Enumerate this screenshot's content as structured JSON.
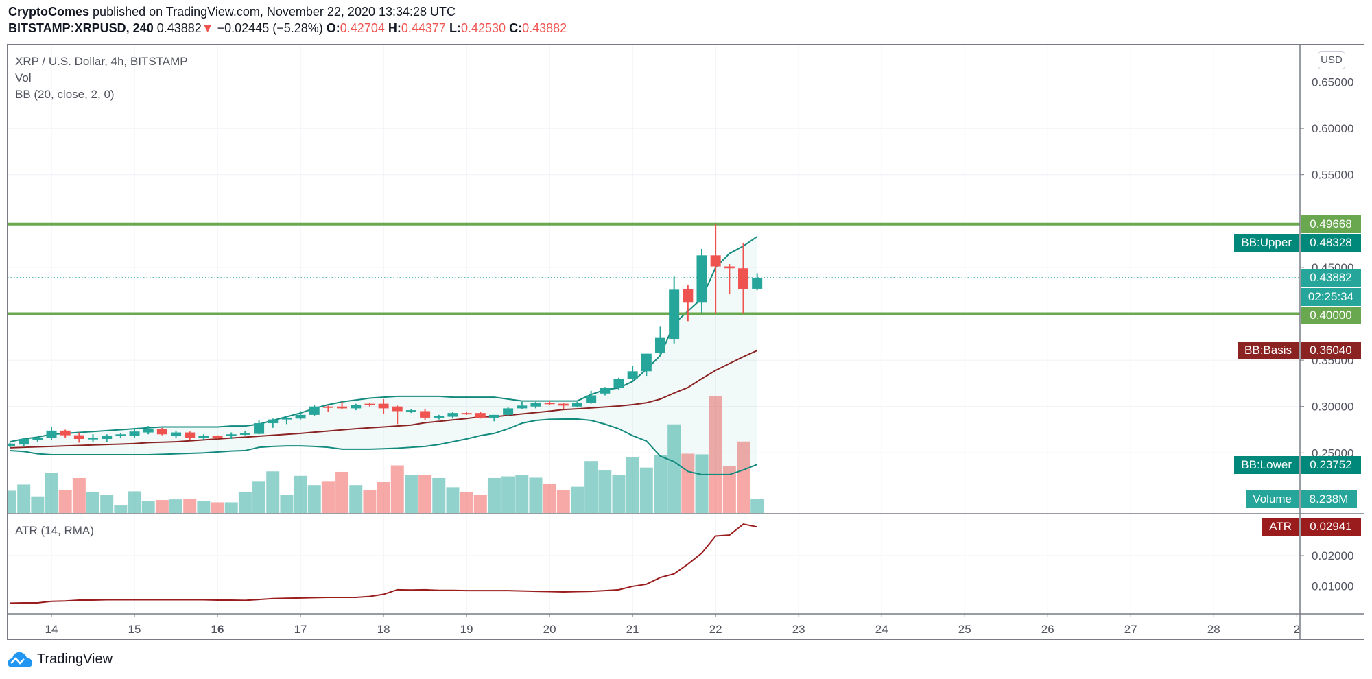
{
  "header": {
    "author": "CryptoComes",
    "published": "published on TradingView.com, November 22, 2020 13:34:28 UTC",
    "symbol": "BITSTAMP:XRPUSD, 240",
    "last": "0.43882",
    "change_arrow": "▼",
    "change": "−0.02445 (−5.28%)",
    "o_label": "O:",
    "o": "0.42704",
    "h_label": "H:",
    "h": "0.44377",
    "l_label": "L:",
    "l": "0.42530",
    "c_label": "C:",
    "c": "0.43882"
  },
  "legend": {
    "title": "XRP / U.S. Dollar, 4h, BITSTAMP",
    "vol": "Vol",
    "bb": "BB (20, close, 2, 0)",
    "atr": "ATR (14, RMA)"
  },
  "currency_button": "USD",
  "price_labels": {
    "resistance": "0.49668",
    "bb_upper_name": "BB:Upper",
    "bb_upper": "0.48328",
    "last": "0.43882",
    "countdown": "02:25:34",
    "support": "0.40000",
    "bb_basis_name": "BB:Basis",
    "bb_basis": "0.36040",
    "bb_lower_name": "BB:Lower",
    "bb_lower": "0.23752",
    "volume_name": "Volume",
    "volume": "8.238M",
    "atr_name": "ATR",
    "atr": "0.02941"
  },
  "colors": {
    "up": "#26a69a",
    "down": "#ef5350",
    "bb_band": "#138a7e",
    "bb_basis": "#8b2323",
    "hline": "#6aa84f",
    "atr": "#9b1c1c"
  },
  "footer": {
    "brand": "TradingView",
    "icon": "tradingview-cloud-logo"
  },
  "chart_data": {
    "type": "candlestick",
    "interval": "4h",
    "x_tick_labels": [
      "14",
      "15",
      "16",
      "17",
      "18",
      "19",
      "20",
      "21",
      "22",
      "23",
      "24",
      "25",
      "26",
      "27",
      "28",
      "2"
    ],
    "price_ticks": [
      "0.25000",
      "0.30000",
      "0.35000",
      "0.45000",
      "0.55000",
      "0.60000",
      "0.65000"
    ],
    "atr_ticks": [
      "0.01000",
      "0.02000"
    ],
    "price_range": [
      0.21,
      0.66
    ],
    "horizontal_lines": [
      0.49668,
      0.4
    ],
    "last_price": 0.43882,
    "ohlc": [
      [
        0.257,
        0.261,
        0.256,
        0.26
      ],
      [
        0.259,
        0.266,
        0.257,
        0.265
      ],
      [
        0.264,
        0.267,
        0.262,
        0.266
      ],
      [
        0.266,
        0.278,
        0.264,
        0.274
      ],
      [
        0.274,
        0.275,
        0.266,
        0.269
      ],
      [
        0.269,
        0.272,
        0.261,
        0.265
      ],
      [
        0.265,
        0.27,
        0.262,
        0.266
      ],
      [
        0.265,
        0.27,
        0.262,
        0.268
      ],
      [
        0.268,
        0.271,
        0.266,
        0.27
      ],
      [
        0.268,
        0.277,
        0.266,
        0.273
      ],
      [
        0.272,
        0.279,
        0.27,
        0.276
      ],
      [
        0.276,
        0.277,
        0.269,
        0.27
      ],
      [
        0.268,
        0.274,
        0.266,
        0.272
      ],
      [
        0.272,
        0.273,
        0.264,
        0.266
      ],
      [
        0.266,
        0.27,
        0.264,
        0.268
      ],
      [
        0.268,
        0.269,
        0.265,
        0.267
      ],
      [
        0.268,
        0.272,
        0.265,
        0.27
      ],
      [
        0.2705,
        0.274,
        0.269,
        0.271
      ],
      [
        0.2705,
        0.285,
        0.27,
        0.282
      ],
      [
        0.282,
        0.287,
        0.277,
        0.286
      ],
      [
        0.286,
        0.29,
        0.281,
        0.288
      ],
      [
        0.287,
        0.295,
        0.286,
        0.291
      ],
      [
        0.291,
        0.302,
        0.29,
        0.3
      ],
      [
        0.3,
        0.301,
        0.294,
        0.299
      ],
      [
        0.3,
        0.305,
        0.297,
        0.298
      ],
      [
        0.298,
        0.303,
        0.296,
        0.302
      ],
      [
        0.303,
        0.304,
        0.3,
        0.302
      ],
      [
        0.303,
        0.308,
        0.292,
        0.298
      ],
      [
        0.3,
        0.301,
        0.281,
        0.295
      ],
      [
        0.295,
        0.297,
        0.293,
        0.296
      ],
      [
        0.295,
        0.297,
        0.285,
        0.288
      ],
      [
        0.288,
        0.291,
        0.286,
        0.29
      ],
      [
        0.289,
        0.294,
        0.287,
        0.293
      ],
      [
        0.293,
        0.294,
        0.291,
        0.292
      ],
      [
        0.293,
        0.294,
        0.287,
        0.288
      ],
      [
        0.288,
        0.291,
        0.284,
        0.291
      ],
      [
        0.291,
        0.299,
        0.29,
        0.298
      ],
      [
        0.298,
        0.305,
        0.297,
        0.301
      ],
      [
        0.3,
        0.305,
        0.298,
        0.304
      ],
      [
        0.304,
        0.306,
        0.302,
        0.303
      ],
      [
        0.303,
        0.304,
        0.297,
        0.301
      ],
      [
        0.3,
        0.305,
        0.299,
        0.304
      ],
      [
        0.304,
        0.317,
        0.303,
        0.312
      ],
      [
        0.314,
        0.321,
        0.312,
        0.32
      ],
      [
        0.32,
        0.331,
        0.318,
        0.33
      ],
      [
        0.33,
        0.344,
        0.328,
        0.338
      ],
      [
        0.338,
        0.357,
        0.333,
        0.357
      ],
      [
        0.358,
        0.386,
        0.355,
        0.374
      ],
      [
        0.373,
        0.44,
        0.368,
        0.426
      ],
      [
        0.427,
        0.431,
        0.392,
        0.412
      ],
      [
        0.412,
        0.47,
        0.401,
        0.463
      ],
      [
        0.463,
        0.4966,
        0.4,
        0.451
      ],
      [
        0.451,
        0.4536,
        0.421,
        0.449
      ],
      [
        0.449,
        0.4766,
        0.4,
        0.427
      ],
      [
        0.42704,
        0.44377,
        0.4253,
        0.43882
      ]
    ],
    "volume_millions": [
      13.4,
      17.1,
      10,
      24,
      13.7,
      21,
      12.7,
      10.7,
      4.5,
      13,
      7.3,
      7.8,
      8.2,
      8.6,
      7,
      6.4,
      6.4,
      12.5,
      18.8,
      25,
      10.7,
      22.3,
      16.8,
      18.8,
      24.7,
      16.8,
      13.7,
      18.5,
      28.6,
      22.7,
      22.7,
      21,
      15.5,
      12.5,
      10.7,
      21,
      22,
      22.7,
      21.2,
      17.3,
      13.8,
      15.8,
      31.2,
      25.5,
      22.7,
      33.4,
      27.3,
      34.7,
      53.2,
      35.6,
      35.2,
      70,
      28.2,
      42.9,
      8.238
    ],
    "bb_upper": [
      0.262,
      0.265,
      0.267,
      0.27,
      0.271,
      0.272,
      0.273,
      0.274,
      0.275,
      0.276,
      0.277,
      0.278,
      0.278,
      0.278,
      0.278,
      0.278,
      0.279,
      0.279,
      0.281,
      0.285,
      0.289,
      0.293,
      0.298,
      0.302,
      0.305,
      0.307,
      0.309,
      0.31,
      0.311,
      0.311,
      0.311,
      0.311,
      0.31,
      0.31,
      0.31,
      0.31,
      0.308,
      0.306,
      0.306,
      0.306,
      0.306,
      0.306,
      0.313,
      0.318,
      0.32,
      0.327,
      0.34,
      0.355,
      0.389,
      0.403,
      0.4165,
      0.45,
      0.465,
      0.473,
      0.48328
    ],
    "bb_basis": [
      0.2555,
      0.256,
      0.2565,
      0.257,
      0.2575,
      0.258,
      0.2585,
      0.259,
      0.2595,
      0.26,
      0.261,
      0.2615,
      0.262,
      0.263,
      0.264,
      0.265,
      0.266,
      0.267,
      0.268,
      0.269,
      0.27,
      0.271,
      0.2723,
      0.2735,
      0.2748,
      0.276,
      0.277,
      0.278,
      0.279,
      0.28,
      0.2825,
      0.284,
      0.2855,
      0.287,
      0.289,
      0.289,
      0.2905,
      0.292,
      0.2935,
      0.295,
      0.2967,
      0.2975,
      0.2985,
      0.2995,
      0.3005,
      0.302,
      0.304,
      0.308,
      0.3145,
      0.3205,
      0.33,
      0.339,
      0.3464,
      0.3537,
      0.3604
    ],
    "bb_lower": [
      0.2524,
      0.2515,
      0.249,
      0.248,
      0.248,
      0.248,
      0.248,
      0.248,
      0.248,
      0.248,
      0.248,
      0.2485,
      0.249,
      0.2495,
      0.25,
      0.251,
      0.252,
      0.2525,
      0.256,
      0.257,
      0.2575,
      0.2575,
      0.257,
      0.256,
      0.254,
      0.254,
      0.254,
      0.2545,
      0.255,
      0.256,
      0.257,
      0.259,
      0.262,
      0.265,
      0.2686,
      0.271,
      0.276,
      0.282,
      0.285,
      0.2862,
      0.2865,
      0.2865,
      0.285,
      0.281,
      0.276,
      0.2686,
      0.2627,
      0.2465,
      0.2405,
      0.23,
      0.2266,
      0.2266,
      0.2266,
      0.2316,
      0.23752
    ],
    "atr": [
      0.0044,
      0.0045,
      0.0045,
      0.005,
      0.0051,
      0.0054,
      0.0054,
      0.0055,
      0.0055,
      0.0055,
      0.0055,
      0.0055,
      0.0055,
      0.0055,
      0.0055,
      0.0054,
      0.0054,
      0.0053,
      0.0056,
      0.0059,
      0.006,
      0.0061,
      0.0062,
      0.0063,
      0.0063,
      0.0063,
      0.0066,
      0.0073,
      0.0088,
      0.0087,
      0.0088,
      0.0086,
      0.0086,
      0.0085,
      0.0085,
      0.0085,
      0.0085,
      0.0084,
      0.0083,
      0.0082,
      0.0081,
      0.0082,
      0.0083,
      0.0085,
      0.0088,
      0.0099,
      0.0106,
      0.0128,
      0.014,
      0.0172,
      0.0208,
      0.0264,
      0.0267,
      0.0303,
      0.0294
    ]
  }
}
